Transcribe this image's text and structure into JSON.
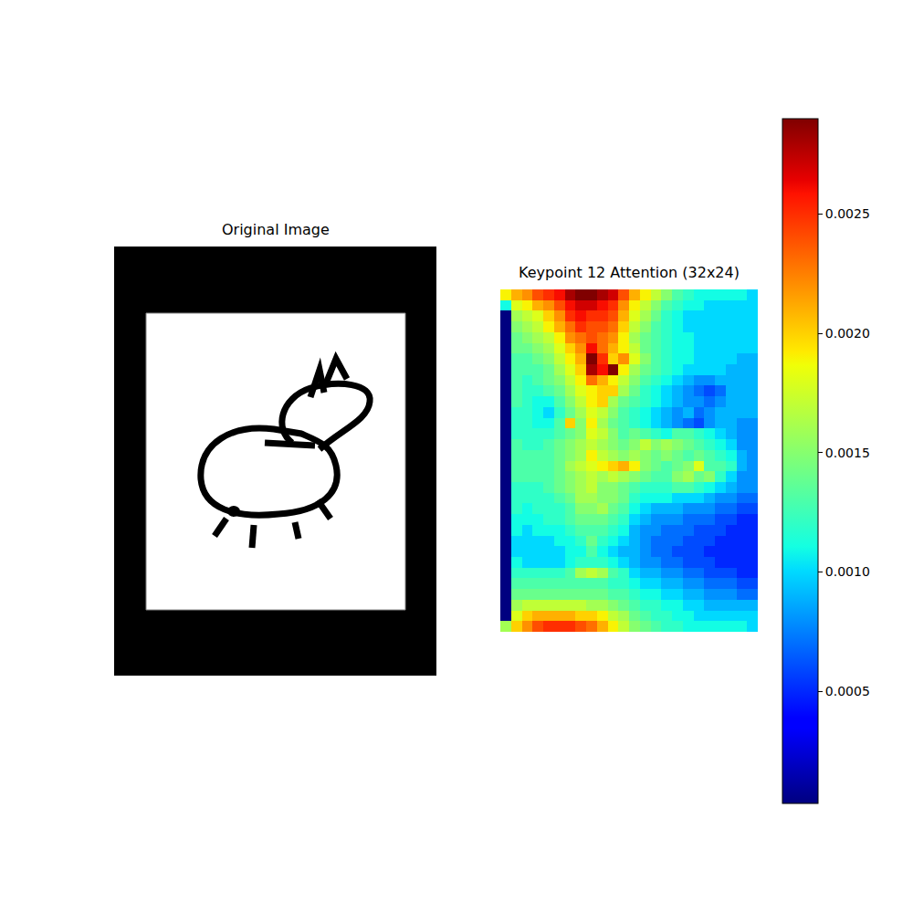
{
  "chart_data": [
    {
      "type": "image",
      "title": "Original Image",
      "tick_labels": false
    },
    {
      "type": "heatmap",
      "title": "Keypoint 12 Attention (32x24)",
      "tick_labels": false,
      "color_range": [
        3e-05,
        0.0029
      ],
      "color_ticks": [
        0.0005,
        {
          "value": 0.001,
          "label": "0.0010"
        },
        0.0015,
        {
          "value": 0.002,
          "label": "0.0020"
        },
        0.0025
      ],
      "cells": [
        [
          0.0019,
          0.0021,
          0.0022,
          0.0024,
          0.0025,
          0.0026,
          0.0028,
          0.0029,
          0.0029,
          0.0028,
          0.0027,
          0.0024,
          0.0021,
          0.0019,
          0.0017,
          0.0015,
          0.0013,
          0.0012,
          0.0011,
          0.0011,
          0.0011,
          0.0011,
          0.0011,
          0.001
        ],
        [
          0.0011,
          0.0018,
          0.0019,
          0.0021,
          0.0022,
          0.0024,
          0.0026,
          0.0027,
          0.0027,
          0.0026,
          0.0025,
          0.0022,
          0.0019,
          0.0017,
          0.0015,
          0.0013,
          0.0012,
          0.0011,
          0.0011,
          0.001,
          0.001,
          0.001,
          0.001,
          0.001
        ],
        [
          3e-05,
          0.0016,
          0.0017,
          0.0018,
          0.002,
          0.0022,
          0.0025,
          0.0026,
          0.0025,
          0.0025,
          0.0024,
          0.0021,
          0.0018,
          0.0016,
          0.0014,
          0.0012,
          0.0011,
          0.001,
          0.001,
          0.001,
          0.001,
          0.001,
          0.001,
          0.001
        ],
        [
          3e-05,
          0.0015,
          0.0016,
          0.0017,
          0.0019,
          0.0021,
          0.0023,
          0.0025,
          0.0024,
          0.0024,
          0.0023,
          0.002,
          0.0017,
          0.0015,
          0.0013,
          0.0012,
          0.0011,
          0.001,
          0.001,
          0.001,
          0.001,
          0.001,
          0.001,
          0.001
        ],
        [
          3e-05,
          0.0014,
          0.0015,
          0.0016,
          0.0017,
          0.0019,
          0.0022,
          0.0023,
          0.0024,
          0.0023,
          0.0022,
          0.0019,
          0.0016,
          0.0014,
          0.0013,
          0.0012,
          0.0011,
          0.0011,
          0.001,
          0.001,
          0.001,
          0.001,
          0.001,
          0.001
        ],
        [
          3e-05,
          0.0014,
          0.0014,
          0.0015,
          0.0016,
          0.0018,
          0.002,
          0.0022,
          0.0026,
          0.0023,
          0.0021,
          0.0019,
          0.0017,
          0.0014,
          0.0013,
          0.0012,
          0.0011,
          0.0011,
          0.001,
          0.001,
          0.001,
          0.001,
          0.001,
          0.001
        ],
        [
          3e-05,
          0.0013,
          0.0013,
          0.0014,
          0.0015,
          0.0017,
          0.0019,
          0.0021,
          0.0029,
          0.0025,
          0.002,
          0.0022,
          0.0018,
          0.0015,
          0.0013,
          0.0012,
          0.0011,
          0.0011,
          0.001,
          0.001,
          0.001,
          0.001,
          0.0009,
          0.0009
        ],
        [
          3e-05,
          0.0013,
          0.0013,
          0.0013,
          0.0014,
          0.0016,
          0.0018,
          0.002,
          0.0028,
          0.0026,
          0.0029,
          0.0019,
          0.0016,
          0.0014,
          0.0013,
          0.0012,
          0.0011,
          0.001,
          0.001,
          0.001,
          0.001,
          0.0009,
          0.0009,
          0.0009
        ],
        [
          3e-05,
          0.0013,
          0.0012,
          0.0013,
          0.0014,
          0.0015,
          0.0017,
          0.0019,
          0.0023,
          0.0021,
          0.0019,
          0.0017,
          0.0015,
          0.0013,
          0.0012,
          0.0011,
          0.001,
          0.0009,
          0.0008,
          0.0008,
          0.0009,
          0.0009,
          0.0009,
          0.0009
        ],
        [
          3e-05,
          0.0013,
          0.0012,
          0.0012,
          0.0013,
          0.0014,
          0.0016,
          0.0018,
          0.0019,
          0.002,
          0.002,
          0.0016,
          0.0014,
          0.0012,
          0.0011,
          0.001,
          0.0009,
          0.0008,
          0.0007,
          0.0006,
          0.0007,
          0.0009,
          0.0009,
          0.0009
        ],
        [
          3e-05,
          0.0013,
          0.0012,
          0.0011,
          0.0011,
          0.0013,
          0.0015,
          0.0017,
          0.0019,
          0.002,
          0.0016,
          0.0014,
          0.0013,
          0.0012,
          0.0011,
          0.001,
          0.0009,
          0.0008,
          0.0008,
          0.0007,
          0.0008,
          0.0009,
          0.0009,
          0.0009
        ],
        [
          3e-05,
          0.0012,
          0.0012,
          0.0011,
          0.001,
          0.0012,
          0.0014,
          0.0016,
          0.0018,
          0.0017,
          0.0015,
          0.0013,
          0.0012,
          0.0011,
          0.001,
          0.0009,
          0.0008,
          0.0009,
          0.0007,
          0.0008,
          0.0009,
          0.0009,
          0.0009,
          0.0009
        ],
        [
          3e-05,
          0.0012,
          0.0012,
          0.0011,
          0.0011,
          0.0013,
          0.002,
          0.0015,
          0.0019,
          0.0016,
          0.0014,
          0.0013,
          0.0012,
          0.0011,
          0.001,
          0.0009,
          0.0008,
          0.0007,
          0.0006,
          0.0008,
          0.0009,
          0.0009,
          0.0008,
          0.0008
        ],
        [
          3e-05,
          0.0012,
          0.0012,
          0.0012,
          0.0012,
          0.0013,
          0.0014,
          0.0015,
          0.0018,
          0.0017,
          0.0015,
          0.0013,
          0.0014,
          0.0013,
          0.0012,
          0.0011,
          0.0013,
          0.0013,
          0.0012,
          0.0011,
          0.001,
          0.0009,
          0.0008,
          0.0008
        ],
        [
          3e-05,
          0.0013,
          0.0012,
          0.0012,
          0.0013,
          0.0014,
          0.0015,
          0.0016,
          0.0017,
          0.0016,
          0.0015,
          0.0014,
          0.0015,
          0.0017,
          0.0015,
          0.0016,
          0.0015,
          0.0014,
          0.0013,
          0.0012,
          0.0011,
          0.001,
          0.0008,
          0.0008
        ],
        [
          3e-05,
          0.0013,
          0.0013,
          0.0013,
          0.0013,
          0.0014,
          0.0015,
          0.0016,
          0.0019,
          0.0017,
          0.0016,
          0.0015,
          0.0016,
          0.0015,
          0.0014,
          0.0015,
          0.0014,
          0.0013,
          0.0014,
          0.0013,
          0.0012,
          0.0011,
          0.0009,
          0.0008
        ],
        [
          3e-05,
          0.0013,
          0.0013,
          0.0013,
          0.0013,
          0.0014,
          0.0016,
          0.0017,
          0.0018,
          0.0019,
          0.002,
          0.0021,
          0.0019,
          0.0015,
          0.0014,
          0.0013,
          0.0014,
          0.0015,
          0.0018,
          0.0013,
          0.0013,
          0.0012,
          0.0009,
          0.0008
        ],
        [
          3e-05,
          0.0013,
          0.0013,
          0.0013,
          0.0013,
          0.0014,
          0.0015,
          0.0016,
          0.0017,
          0.0016,
          0.0017,
          0.0016,
          0.0015,
          0.0014,
          0.0013,
          0.0013,
          0.0015,
          0.0016,
          0.0014,
          0.0015,
          0.0012,
          0.001,
          0.0008,
          0.0008
        ],
        [
          3e-05,
          0.0012,
          0.0012,
          0.0012,
          0.0013,
          0.0014,
          0.0015,
          0.0016,
          0.0017,
          0.0015,
          0.0015,
          0.0014,
          0.0013,
          0.0012,
          0.0012,
          0.0012,
          0.0013,
          0.0013,
          0.0012,
          0.0011,
          0.001,
          0.0009,
          0.0008,
          0.0008
        ],
        [
          3e-05,
          0.0012,
          0.0012,
          0.0012,
          0.0012,
          0.0013,
          0.0014,
          0.0016,
          0.0016,
          0.0015,
          0.0015,
          0.0014,
          0.0012,
          0.0011,
          0.0011,
          0.0011,
          0.001,
          0.001,
          0.001,
          0.0009,
          0.0008,
          0.0008,
          0.0007,
          0.0007
        ],
        [
          3e-05,
          0.0012,
          0.0011,
          0.0012,
          0.0012,
          0.0012,
          0.0013,
          0.0015,
          0.0015,
          0.0016,
          0.0014,
          0.0013,
          0.0011,
          0.001,
          0.0009,
          0.0009,
          0.0009,
          0.0008,
          0.0008,
          0.0008,
          0.0007,
          0.0007,
          0.0006,
          0.0006
        ],
        [
          3e-05,
          0.0011,
          0.0011,
          0.0011,
          0.0012,
          0.0012,
          0.0013,
          0.0014,
          0.0014,
          0.0014,
          0.0013,
          0.0012,
          0.001,
          0.0009,
          0.0008,
          0.0008,
          0.0008,
          0.0007,
          0.0007,
          0.0007,
          0.0006,
          0.0006,
          0.0005,
          0.0005
        ],
        [
          3e-05,
          0.0011,
          0.001,
          0.0011,
          0.0011,
          0.0011,
          0.0012,
          0.0013,
          0.0013,
          0.0013,
          0.0012,
          0.0011,
          0.0009,
          0.0008,
          0.0008,
          0.0007,
          0.0007,
          0.0007,
          0.0006,
          0.0006,
          0.0006,
          0.0005,
          0.0005,
          0.0005
        ],
        [
          3e-05,
          0.001,
          0.001,
          0.001,
          0.001,
          0.0011,
          0.0011,
          0.0012,
          0.0014,
          0.0012,
          0.0011,
          0.001,
          0.0009,
          0.0008,
          0.0007,
          0.0007,
          0.0007,
          0.0006,
          0.0006,
          0.0006,
          0.0005,
          0.0005,
          0.0005,
          0.0005
        ],
        [
          3e-05,
          0.001,
          0.001,
          0.001,
          0.001,
          0.001,
          0.0011,
          0.0011,
          0.0013,
          0.0011,
          0.001,
          0.0009,
          0.0009,
          0.0008,
          0.0007,
          0.0007,
          0.0006,
          0.0006,
          0.0006,
          0.0005,
          0.0005,
          0.0005,
          0.0005,
          0.0005
        ],
        [
          3e-05,
          0.0011,
          0.001,
          0.001,
          0.001,
          0.001,
          0.0011,
          0.0012,
          0.0012,
          0.0012,
          0.0011,
          0.001,
          0.0009,
          0.0008,
          0.0008,
          0.0007,
          0.0007,
          0.0006,
          0.0006,
          0.0006,
          0.0005,
          0.0005,
          0.0005,
          0.0005
        ],
        [
          3e-05,
          0.0012,
          0.0012,
          0.0012,
          0.0012,
          0.0012,
          0.0013,
          0.0016,
          0.0017,
          0.0016,
          0.0013,
          0.0012,
          0.001,
          0.0009,
          0.0009,
          0.0008,
          0.0008,
          0.0007,
          0.0007,
          0.0006,
          0.0006,
          0.0006,
          0.0005,
          0.0005
        ],
        [
          3e-05,
          0.0013,
          0.0013,
          0.0013,
          0.0013,
          0.0013,
          0.0013,
          0.0013,
          0.0013,
          0.0013,
          0.0012,
          0.0012,
          0.0011,
          0.001,
          0.001,
          0.0009,
          0.0009,
          0.0008,
          0.0008,
          0.0007,
          0.0007,
          0.0007,
          0.0006,
          0.0006
        ],
        [
          3e-05,
          0.0014,
          0.0014,
          0.0014,
          0.0014,
          0.0014,
          0.0014,
          0.0014,
          0.0014,
          0.0014,
          0.0013,
          0.0013,
          0.0012,
          0.0011,
          0.0011,
          0.001,
          0.001,
          0.0009,
          0.0009,
          0.0008,
          0.0008,
          0.0008,
          0.0007,
          0.0007
        ],
        [
          3e-05,
          0.0016,
          0.0017,
          0.0017,
          0.0017,
          0.0017,
          0.0017,
          0.0017,
          0.0016,
          0.0016,
          0.0015,
          0.0014,
          0.0013,
          0.0012,
          0.0012,
          0.0011,
          0.0011,
          0.001,
          0.001,
          0.0009,
          0.0009,
          0.0009,
          0.0009,
          0.0009
        ],
        [
          3e-05,
          0.0018,
          0.002,
          0.0021,
          0.0021,
          0.0021,
          0.0021,
          0.002,
          0.002,
          0.0019,
          0.0017,
          0.0016,
          0.0014,
          0.0013,
          0.0012,
          0.0012,
          0.0011,
          0.0011,
          0.001,
          0.001,
          0.001,
          0.001,
          0.001,
          0.001
        ],
        [
          0.0016,
          0.002,
          0.0022,
          0.0024,
          0.0025,
          0.0025,
          0.0025,
          0.0024,
          0.0023,
          0.0021,
          0.0019,
          0.0017,
          0.0015,
          0.0014,
          0.0013,
          0.0012,
          0.0012,
          0.0011,
          0.0011,
          0.0011,
          0.0011,
          0.0011,
          0.0011,
          0.001
        ]
      ]
    }
  ]
}
